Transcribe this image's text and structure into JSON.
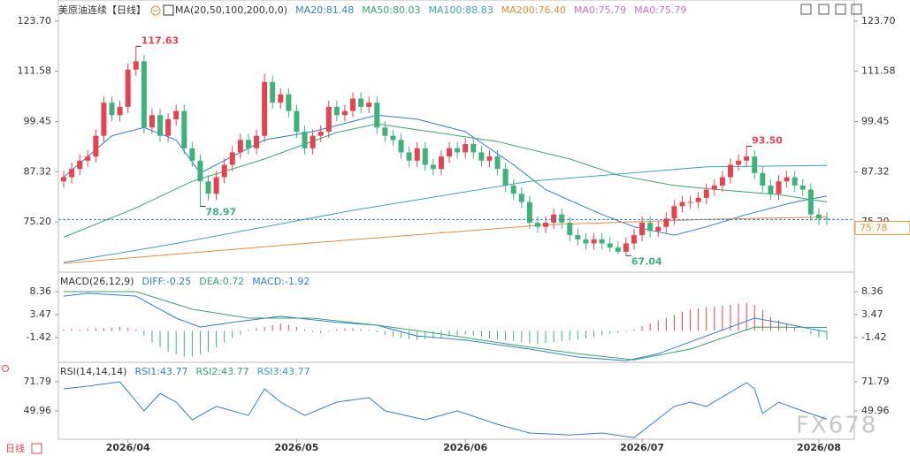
{
  "header": {
    "title": "美原油连续【日线】",
    "ma_params": "MA(20,50,100,200,0,0)"
  },
  "x_axis": {
    "ticks": [
      {
        "value": 8,
        "label": "2026/04"
      },
      {
        "value": 29,
        "label": "2026/05"
      },
      {
        "value": 50,
        "label": "2026/06"
      },
      {
        "value": 72,
        "label": "2026/07"
      },
      {
        "value": 94,
        "label": "2026/08"
      }
    ]
  },
  "chart_data": [
    {
      "type": "candlestick",
      "up_color": "#e5434f",
      "down_color": "#3eb27a",
      "ylim": [
        63.7,
        125.6
      ],
      "yticks": [
        {
          "value": 123.7,
          "label": "123.70"
        },
        111.58,
        99.45,
        87.32,
        {
          "value": 75.2,
          "label": "75.20"
        }
      ],
      "open": [
        85,
        86,
        88,
        90,
        91,
        96,
        104,
        101,
        103,
        112,
        114,
        98,
        101,
        96,
        100,
        102,
        93,
        90,
        85,
        82,
        86,
        89,
        92,
        95,
        93,
        96,
        109,
        104,
        106,
        102,
        97,
        93,
        96,
        97,
        103,
        101,
        102,
        105,
        103,
        104,
        98,
        96,
        95,
        92,
        90,
        93,
        89,
        88,
        91,
        93,
        92,
        94,
        92,
        90,
        91,
        88,
        84,
        82,
        80,
        75,
        74,
        75,
        77,
        75,
        72,
        71,
        70,
        71,
        70,
        69,
        68,
        70,
        72,
        75,
        73,
        74,
        76,
        79,
        80,
        80,
        81,
        83,
        84,
        86,
        89,
        90,
        91,
        87,
        84,
        82,
        85,
        86,
        84,
        83,
        77,
        76
      ],
      "high": [
        87.5,
        89.5,
        91.5,
        92.5,
        97.5,
        105.5,
        105.5,
        104.5,
        113.5,
        117.63,
        115.5,
        102.5,
        102.5,
        101.5,
        103.5,
        103.5,
        94.5,
        91.5,
        86.5,
        87.5,
        90.5,
        93.5,
        96.5,
        96.5,
        97.5,
        111,
        110.5,
        107.5,
        107.5,
        103.5,
        98.5,
        97.5,
        98.5,
        104.5,
        104.5,
        103.5,
        106.5,
        106.5,
        105.5,
        105.5,
        99.5,
        97.5,
        96.5,
        93.5,
        94.5,
        94.5,
        90.5,
        92.5,
        94.5,
        94.5,
        95.5,
        95.5,
        93.5,
        92.5,
        92.5,
        89.5,
        85.5,
        83.5,
        81.5,
        76.5,
        76.5,
        78.5,
        78.5,
        76.5,
        73.5,
        72.5,
        72.5,
        72.5,
        71.5,
        70.5,
        71.5,
        73.5,
        76.5,
        76.5,
        75.5,
        77.5,
        80.5,
        81.5,
        81.5,
        82.5,
        84.5,
        85.5,
        87.5,
        90.5,
        91.5,
        93.5,
        92.5,
        88.5,
        85.5,
        86.5,
        87.5,
        87.5,
        85.5,
        84.5,
        78.5,
        77.5
      ],
      "low": [
        83.5,
        84.5,
        86.5,
        88.5,
        89.5,
        94.5,
        99.5,
        99.5,
        101.5,
        110.5,
        96.5,
        96.5,
        94.5,
        94.5,
        98.5,
        91.5,
        88.5,
        78.97,
        80.5,
        80.5,
        84.5,
        87.5,
        90.5,
        91.5,
        91.5,
        94.5,
        102.5,
        102.5,
        100.5,
        95.5,
        91.5,
        91.5,
        94.5,
        95.5,
        99.5,
        99.5,
        100.5,
        101.5,
        101.5,
        96.5,
        94.5,
        93.5,
        90.5,
        88.5,
        88.5,
        87.5,
        86.5,
        86.5,
        89.5,
        90.5,
        90.5,
        90.5,
        88.5,
        88.5,
        86.5,
        82.5,
        80.5,
        78.5,
        73.5,
        72.5,
        72.5,
        73.5,
        73.5,
        70.5,
        69.5,
        68.5,
        68.5,
        68.5,
        68,
        67.5,
        67.04,
        68.5,
        70.5,
        71.5,
        71.5,
        72.5,
        74.5,
        77.5,
        78.5,
        78.5,
        79.5,
        81.5,
        82.5,
        84.5,
        87.5,
        88.5,
        85.5,
        82.5,
        80.5,
        80.5,
        83.5,
        82.5,
        81.5,
        75.5,
        74.5,
        74.5
      ],
      "close": [
        86,
        88,
        90,
        91,
        96,
        104,
        101,
        103,
        112,
        114,
        98,
        101,
        96,
        100,
        102,
        93,
        90,
        85,
        82,
        86,
        89,
        92,
        95,
        93,
        96,
        109,
        104,
        106,
        102,
        97,
        93,
        96,
        97,
        103,
        101,
        102,
        105,
        103,
        104,
        98,
        96,
        95,
        92,
        90,
        93,
        89,
        88,
        91,
        93,
        92,
        94,
        92,
        90,
        91,
        88,
        84,
        82,
        80,
        75,
        74,
        75,
        77,
        75,
        72,
        71,
        70,
        71,
        70,
        69,
        68,
        70,
        72,
        75,
        73,
        74,
        76,
        79,
        80,
        80,
        81,
        83,
        84,
        86,
        89,
        90,
        91,
        87,
        84,
        82,
        85,
        86,
        84,
        83,
        77,
        76,
        75.78
      ],
      "series": [
        {
          "name": "MA20:81.48",
          "color": "#2e7ed8",
          "x": [
            0,
            6,
            10,
            14,
            17,
            25,
            31,
            39,
            44,
            50,
            56,
            60,
            67,
            71,
            76,
            80,
            85,
            91,
            95
          ],
          "values": [
            86,
            96,
            98,
            95,
            87,
            95,
            97,
            101,
            100,
            97,
            89,
            83,
            77,
            74,
            72,
            74,
            77,
            80,
            81.48
          ]
        },
        {
          "name": "MA50:80.03",
          "color": "#36a56b",
          "x": [
            0,
            9,
            16,
            25,
            34,
            39,
            45,
            54,
            63,
            69,
            76,
            82,
            89,
            95
          ],
          "values": [
            71.5,
            78.6,
            85,
            90.4,
            96.8,
            98.9,
            97.2,
            94.6,
            90.4,
            86.5,
            84,
            82.9,
            81.8,
            80.03
          ]
        },
        {
          "name": "MA100:88.83",
          "color": "#3aa0c8",
          "x": [
            0,
            14,
            36,
            58,
            80,
            95
          ],
          "values": [
            65.4,
            70,
            78,
            85,
            88.5,
            88.83
          ]
        },
        {
          "name": "MA200:76.40",
          "color": "#e88a3a",
          "x": [
            0,
            30,
            60,
            80,
            95
          ],
          "values": [
            65.2,
            70,
            74.5,
            75.8,
            76.4
          ]
        },
        {
          "name": "MA0:75.79",
          "color": "#d36fc5"
        },
        {
          "name": "MA0:75.79",
          "color": "#d36fc5"
        }
      ],
      "annotations": [
        {
          "label": "117.63",
          "index": 9,
          "value": 117.63,
          "color": "#e5434f"
        },
        {
          "label": "78.97",
          "index": 17,
          "value": 78.97,
          "color": "#3eb27a"
        },
        {
          "label": "67.04",
          "index": 70,
          "value": 67.04,
          "color": "#3eb27a"
        },
        {
          "label": "93.50",
          "index": 85,
          "value": 93.5,
          "color": "#e5434f"
        }
      ],
      "last_price": {
        "value": 75.78,
        "label": "75.78",
        "color": "#f08c2e"
      }
    },
    {
      "type": "macd",
      "title": "MACD(26,12,9)",
      "ylim": [
        -6.73,
        11.76
      ],
      "yticks": [
        8.36,
        3.47,
        -1.42
      ],
      "series": [
        {
          "name": "DIFF:-0.25",
          "color": "#2e7ed8",
          "x": [
            0,
            3,
            9,
            14,
            17,
            21,
            27,
            34,
            39,
            44,
            50,
            58,
            64,
            70,
            74,
            80,
            86,
            89,
            95
          ],
          "values": [
            7.4,
            8.0,
            7.4,
            2.7,
            0.8,
            1.8,
            3.1,
            1.8,
            1.2,
            -1.1,
            -2.0,
            -3.9,
            -5.6,
            -6.4,
            -4.9,
            -1.1,
            2.7,
            1.8,
            -0.25
          ]
        },
        {
          "name": "DEA:0.72",
          "color": "#36a56b",
          "x": [
            0,
            9,
            16,
            23,
            31,
            39,
            47,
            56,
            64,
            71,
            78,
            86,
            95
          ],
          "values": [
            8.36,
            8.36,
            4.6,
            2.7,
            2.7,
            1.2,
            -0.7,
            -3.0,
            -4.9,
            -6.2,
            -3.9,
            0.8,
            0.72
          ]
        }
      ],
      "histogram": {
        "name": "MACD:-1.92",
        "color": "#2e7ed8",
        "up_color": "#e5434f",
        "down_color": "#3eb27a",
        "values": [
          0.3,
          0.4,
          0.3,
          0.4,
          0.5,
          0.6,
          0.7,
          0.8,
          0.6,
          0.3,
          -1.0,
          -2.5,
          -3.5,
          -4.5,
          -5.0,
          -5.5,
          -5.5,
          -5.0,
          -4.5,
          -3.5,
          -2.5,
          -1.5,
          -0.8,
          0.2,
          0.5,
          0.8,
          1.2,
          1.5,
          1.3,
          0.8,
          0.3,
          -0.3,
          -0.5,
          -0.2,
          0.3,
          0.5,
          0.6,
          0.4,
          0.2,
          -0.3,
          -0.8,
          -1.2,
          -1.5,
          -1.8,
          -2.0,
          -1.8,
          -1.6,
          -1.5,
          -1.2,
          -1.0,
          -0.8,
          -1.0,
          -1.3,
          -1.6,
          -1.8,
          -2.0,
          -2.2,
          -2.5,
          -2.7,
          -2.8,
          -2.6,
          -2.4,
          -2.2,
          -2.0,
          -1.8,
          -1.6,
          -1.3,
          -1.0,
          -0.7,
          -0.4,
          -0.2,
          0.3,
          1.0,
          1.6,
          2.2,
          2.8,
          3.4,
          4.0,
          4.5,
          4.8,
          5.0,
          5.2,
          5.4,
          5.6,
          5.8,
          6.0,
          5.5,
          4.5,
          3.0,
          2.2,
          1.5,
          0.8,
          -0.2,
          -0.8,
          -1.4,
          -1.92
        ]
      }
    },
    {
      "type": "line",
      "title": "RSI(14,14,14)",
      "ylim": [
        28.8,
        85
      ],
      "yticks": [
        71.79,
        49.96
      ],
      "series": [
        {
          "name": "RSI1:43.77",
          "color": "#2e7ed8",
          "x": [
            0,
            3,
            7,
            10,
            12,
            14,
            16,
            19,
            23,
            25,
            27,
            30,
            34,
            38,
            40,
            45,
            49,
            54,
            58,
            63,
            67,
            71,
            76,
            78,
            80,
            85,
            86,
            87,
            89,
            91,
            95
          ],
          "values": [
            66.5,
            68.5,
            71.8,
            50,
            63,
            56.6,
            43.3,
            53.3,
            46.6,
            66.5,
            56.6,
            46.6,
            56.6,
            59.9,
            50,
            43.3,
            50,
            40,
            33.4,
            32,
            33.4,
            30,
            53.3,
            56.6,
            53.3,
            71.1,
            66.5,
            48,
            56.6,
            52,
            43.77
          ]
        },
        {
          "name": "RSI2:43.77",
          "color": "#36a56b"
        },
        {
          "name": "RSI3:43.77",
          "color": "#3aa0c8"
        }
      ]
    }
  ],
  "footer": {
    "period": "日线",
    "watermark": "FX678"
  }
}
